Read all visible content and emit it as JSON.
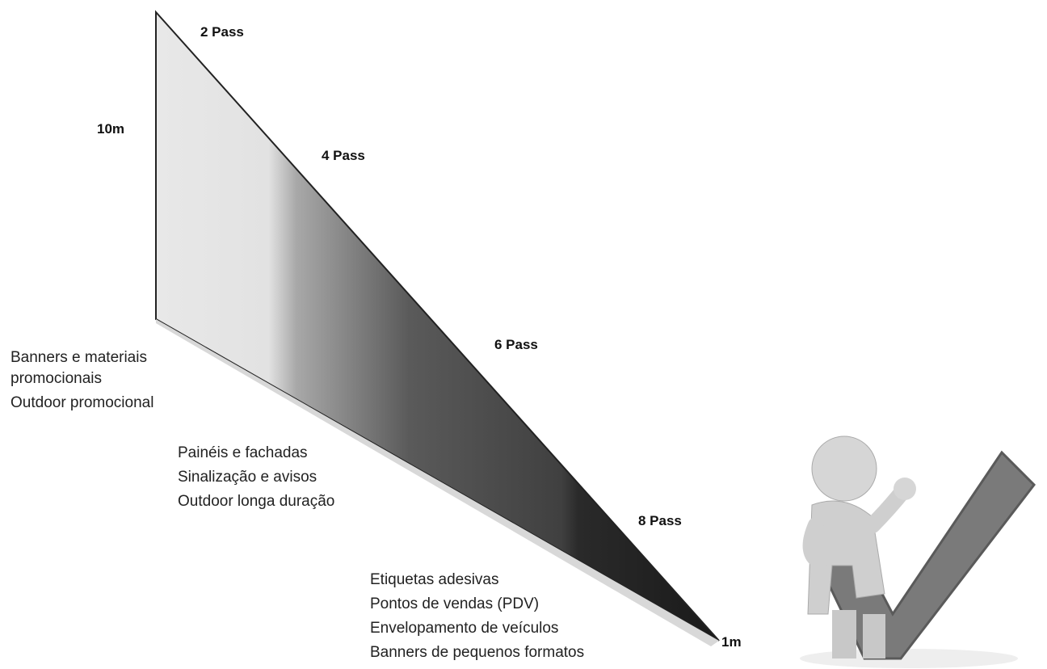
{
  "scale": {
    "top": "10m",
    "bottom": "1m"
  },
  "passes": [
    "2 Pass",
    "4 Pass",
    "6 Pass",
    "8 Pass"
  ],
  "applications": [
    [
      "Banners e materiais promocionais",
      "Outdoor promocional"
    ],
    [
      "Painéis e fachadas",
      "Sinalização e avisos",
      "Outdoor longa duração"
    ],
    [
      "Etiquetas adesivas",
      "Pontos de vendas (PDV)",
      "Envelopamento de veículos",
      "Banners de pequenos formatos"
    ]
  ]
}
